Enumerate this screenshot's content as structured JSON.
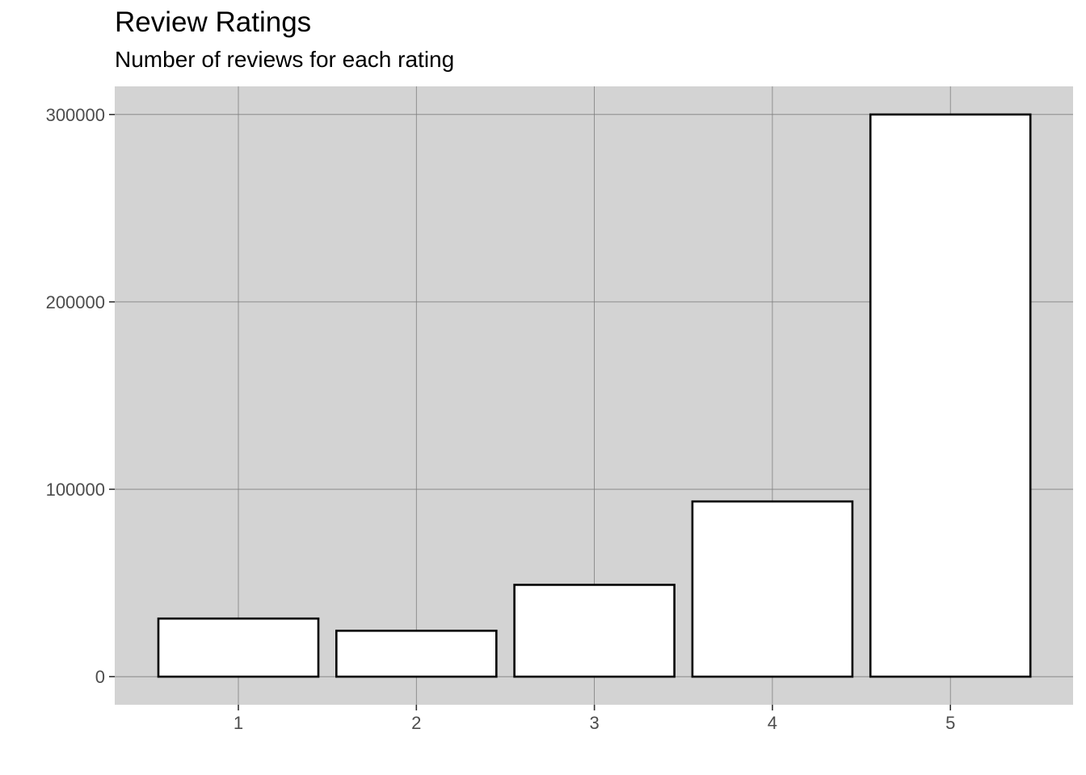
{
  "chart_data": {
    "type": "bar",
    "title": "Review Ratings",
    "subtitle": "Number of reviews for each rating",
    "xlabel": "",
    "ylabel": "",
    "categories": [
      "1",
      "2",
      "3",
      "4",
      "5"
    ],
    "values": [
      31000,
      24500,
      49000,
      93500,
      300000
    ],
    "ylim": [
      -15000,
      315000
    ],
    "yticks": [
      0,
      100000,
      200000,
      300000
    ],
    "ytick_labels": [
      "0",
      "100000",
      "200000",
      "300000"
    ],
    "grid": true,
    "legend": "none",
    "colors": {
      "panel_background": "#d3d3d3",
      "grid_line": "#7f7f7f",
      "bar_fill": "#ffffff",
      "bar_outline": "#000000",
      "tick_text": "#4d4d4d"
    }
  }
}
